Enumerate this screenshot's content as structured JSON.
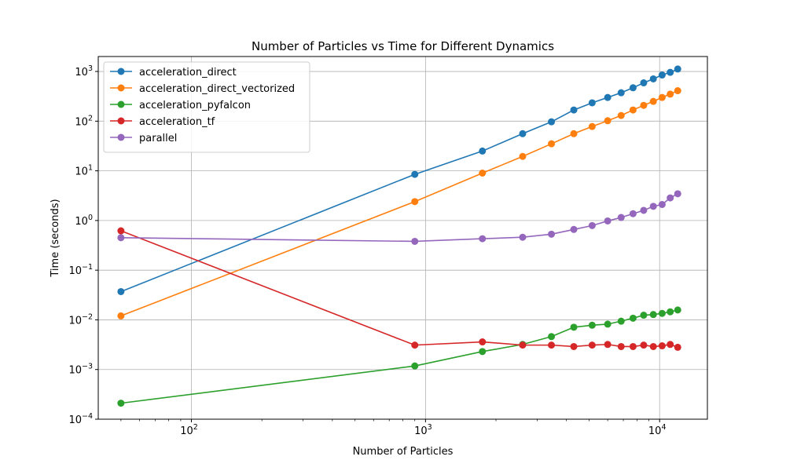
{
  "chart_data": {
    "type": "line",
    "title": "Number of Particles vs Time for Different Dynamics",
    "xlabel": "Number of Particles",
    "ylabel": "Time (seconds)",
    "xscale": "log",
    "yscale": "log",
    "xlim": [
      40,
      16000
    ],
    "ylim": [
      0.0001,
      2000
    ],
    "x_ticks": [
      {
        "value": 100,
        "base": "10",
        "exp": "2"
      },
      {
        "value": 1000,
        "base": "10",
        "exp": "3"
      },
      {
        "value": 10000,
        "base": "10",
        "exp": "4"
      }
    ],
    "y_ticks": [
      {
        "value": 0.0001,
        "base": "10",
        "exp": "−4"
      },
      {
        "value": 0.001,
        "base": "10",
        "exp": "−3"
      },
      {
        "value": 0.01,
        "base": "10",
        "exp": "−2"
      },
      {
        "value": 0.1,
        "base": "10",
        "exp": "−1"
      },
      {
        "value": 1,
        "base": "10",
        "exp": "0"
      },
      {
        "value": 10,
        "base": "10",
        "exp": "1"
      },
      {
        "value": 100,
        "base": "10",
        "exp": "2"
      },
      {
        "value": 1000,
        "base": "10",
        "exp": "3"
      }
    ],
    "grid": true,
    "legend_position": "top-left",
    "x": [
      50,
      900,
      1750,
      2600,
      3450,
      4300,
      5150,
      6000,
      6850,
      7700,
      8550,
      9400,
      10250,
      11100,
      11950
    ],
    "series": [
      {
        "name": "acceleration_direct",
        "color": "#1f77b4",
        "values": [
          0.037,
          8.5,
          25,
          56,
          97,
          168,
          234,
          300,
          373,
          470,
          590,
          710,
          850,
          960,
          1120
        ]
      },
      {
        "name": "acceleration_direct_vectorized",
        "color": "#ff7f0e",
        "values": [
          0.012,
          2.4,
          9,
          19.5,
          35,
          56,
          78,
          102,
          130,
          168,
          208,
          250,
          300,
          350,
          410
        ]
      },
      {
        "name": "acceleration_pyfalcon",
        "color": "#2ca02c",
        "values": [
          0.00021,
          0.00118,
          0.0023,
          0.0032,
          0.0046,
          0.0071,
          0.0078,
          0.0082,
          0.0094,
          0.0108,
          0.0124,
          0.0128,
          0.0135,
          0.0145,
          0.0158
        ]
      },
      {
        "name": "acceleration_tf",
        "color": "#d62728",
        "values": [
          0.62,
          0.0031,
          0.0036,
          0.0031,
          0.0031,
          0.0029,
          0.0031,
          0.0032,
          0.0029,
          0.0029,
          0.0031,
          0.0029,
          0.003,
          0.0032,
          0.0028
        ]
      },
      {
        "name": "parallel",
        "color": "#9467bd",
        "values": [
          0.45,
          0.38,
          0.43,
          0.46,
          0.53,
          0.66,
          0.79,
          0.98,
          1.15,
          1.37,
          1.6,
          1.93,
          2.1,
          2.85,
          3.45
        ]
      }
    ]
  }
}
